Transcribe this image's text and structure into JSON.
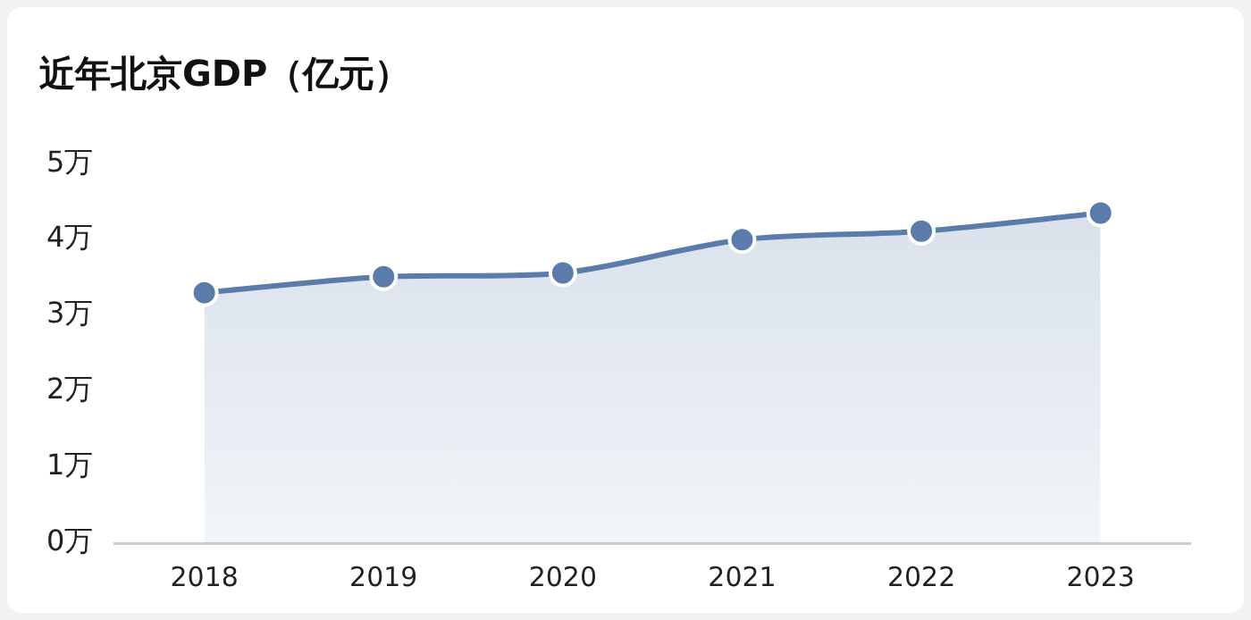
{
  "chart_data": {
    "type": "area",
    "title": "近年北京GDP（亿元）",
    "categories": [
      "2018",
      "2019",
      "2020",
      "2021",
      "2022",
      "2023"
    ],
    "series": [
      {
        "color": "#5b7cab",
        "values": [
          3.3,
          3.51,
          3.56,
          4.0,
          4.11,
          4.35
        ]
      }
    ],
    "ylim": [
      0,
      5
    ],
    "yticks": [
      {
        "value": 0,
        "label": "0万"
      },
      {
        "value": 1,
        "label": "1万"
      },
      {
        "value": 2,
        "label": "2万"
      },
      {
        "value": 3,
        "label": "3万"
      },
      {
        "value": 4,
        "label": "4万"
      },
      {
        "value": 5,
        "label": "5万"
      }
    ],
    "grid": false,
    "legend": false,
    "marker": "circle"
  }
}
